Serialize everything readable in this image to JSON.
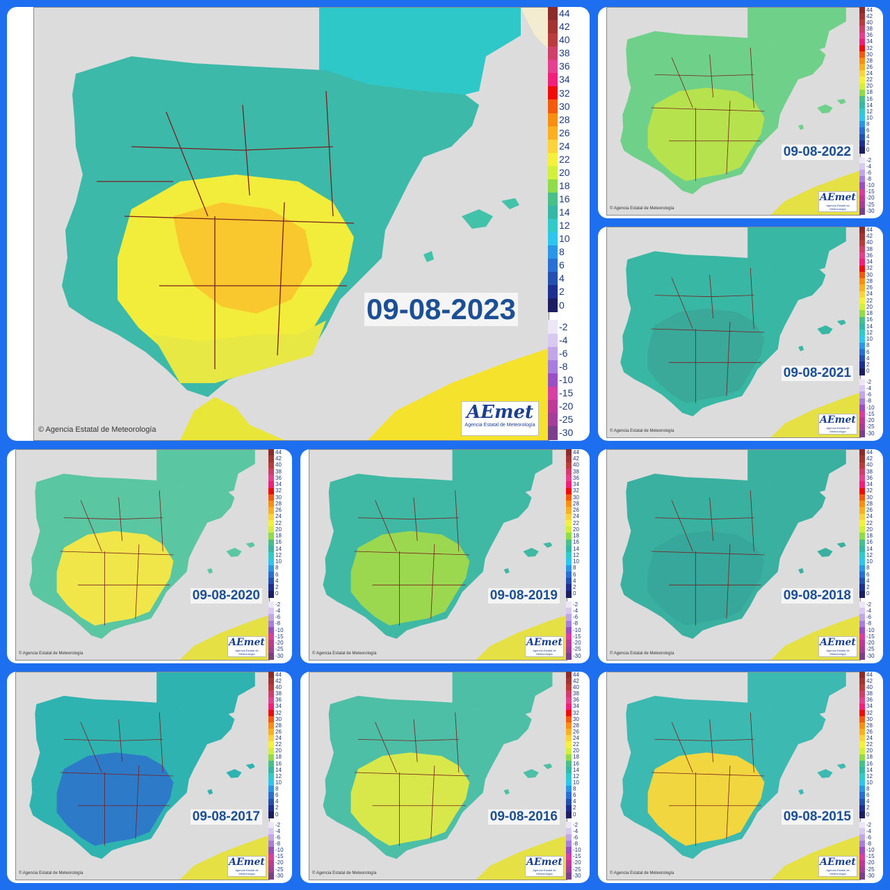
{
  "main_panel": {
    "date": "09-08-2023",
    "credit": "© Agencia Estatal de Meteorología",
    "logo": {
      "brand": "AEmet",
      "subtitle": "Agencia Estatal de Meteorología"
    }
  },
  "small_panels": [
    {
      "date": "09-08-2022",
      "dominant_color": "#6fd08a",
      "interior_color": "#b6e34d"
    },
    {
      "date": "09-08-2021",
      "dominant_color": "#38b8a4",
      "interior_color": "#3aa99a"
    },
    {
      "date": "09-08-2020",
      "dominant_color": "#5ac6a2",
      "interior_color": "#f0e64a"
    },
    {
      "date": "09-08-2019",
      "dominant_color": "#3fb8a4",
      "interior_color": "#9cd84f"
    },
    {
      "date": "09-08-2018",
      "dominant_color": "#39b0a0",
      "interior_color": "#36a79a"
    },
    {
      "date": "09-08-2017",
      "dominant_color": "#2fb3b0",
      "interior_color": "#2c7ac8"
    },
    {
      "date": "09-08-2016",
      "dominant_color": "#4cbfa6",
      "interior_color": "#d8e84a"
    },
    {
      "date": "09-08-2015",
      "dominant_color": "#3cb9b0",
      "interior_color": "#f2d640"
    }
  ],
  "small_credit": "© Agencia Estatal de Meteorología",
  "small_logo": {
    "brand": "AEmet",
    "subtitle": "Agencia Estatal de Meteorología"
  },
  "legend": {
    "positive": [
      {
        "label": "44",
        "color": "#8b2b2b"
      },
      {
        "label": "42",
        "color": "#a23434"
      },
      {
        "label": "40",
        "color": "#b83c3c"
      },
      {
        "label": "38",
        "color": "#cf3f6a"
      },
      {
        "label": "36",
        "color": "#e5408f"
      },
      {
        "label": "34",
        "color": "#f0207a"
      },
      {
        "label": "32",
        "color": "#f00a0a"
      },
      {
        "label": "30",
        "color": "#f35a0c"
      },
      {
        "label": "28",
        "color": "#f88e12"
      },
      {
        "label": "26",
        "color": "#fbb022"
      },
      {
        "label": "24",
        "color": "#fdd23a"
      },
      {
        "label": "22",
        "color": "#f5f03a"
      },
      {
        "label": "20",
        "color": "#d2ef3a"
      },
      {
        "label": "18",
        "color": "#8fdb4a"
      },
      {
        "label": "16",
        "color": "#49c08a"
      },
      {
        "label": "14",
        "color": "#35b8a6"
      },
      {
        "label": "12",
        "color": "#32cac8"
      },
      {
        "label": "10",
        "color": "#2fc6ee"
      },
      {
        "label": "8",
        "color": "#2a96e6"
      },
      {
        "label": "6",
        "color": "#2a6fd4"
      },
      {
        "label": "4",
        "color": "#2450b0"
      },
      {
        "label": "2",
        "color": "#1f2f8f"
      },
      {
        "label": "0",
        "color": "#1b1f62"
      }
    ],
    "negative": [
      {
        "label": "-2",
        "color": "#ece6f6"
      },
      {
        "label": "-4",
        "color": "#d8c9f0"
      },
      {
        "label": "-6",
        "color": "#c1a6ea"
      },
      {
        "label": "-8",
        "color": "#a77ddd"
      },
      {
        "label": "-10",
        "color": "#9a4fc6"
      },
      {
        "label": "-15",
        "color": "#d640a6"
      },
      {
        "label": "-20",
        "color": "#bc3a9a"
      },
      {
        "label": "-25",
        "color": "#a33f9a"
      },
      {
        "label": "-30",
        "color": "#7a3f8f"
      }
    ]
  }
}
